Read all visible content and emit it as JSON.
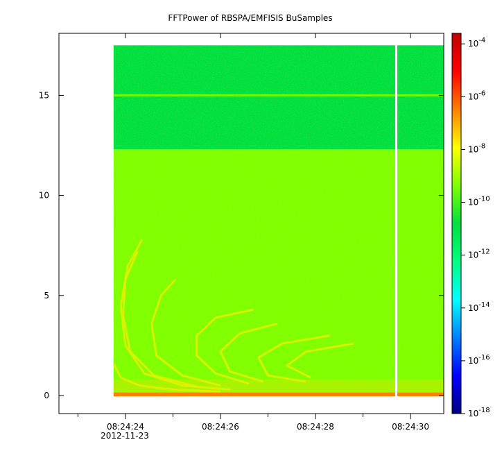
{
  "chart_data": {
    "type": "heatmap",
    "title": "FFTPower of RBSPA/EMFISIS  BuSamples",
    "xlabel": "",
    "ylabel": "",
    "x_ticks": [
      {
        "t": 24,
        "label": "08:24:24"
      },
      {
        "t": 26,
        "label": "08:24:26"
      },
      {
        "t": 28,
        "label": "08:24:28"
      },
      {
        "t": 30,
        "label": "08:24:30"
      }
    ],
    "x_minor_ticks": [
      23,
      25,
      27,
      29
    ],
    "date_label": "2012-11-23",
    "xlim": [
      22.6,
      30.7
    ],
    "ylim": [
      -0.9,
      18.1
    ],
    "y_ticks": [
      0,
      5,
      10,
      15
    ],
    "data_start_time": 23.75,
    "data_end_time": 30.7,
    "data_max_frequency": 17.5,
    "data_gap_time": 29.7,
    "colorbar": {
      "scale": "log",
      "min_exponent": -18,
      "max_exponent": -3.6,
      "tick_exponents": [
        -18,
        -16,
        -14,
        -12,
        -10,
        -8,
        -6,
        -4
      ],
      "colors": [
        "#00007f",
        "#0000ff",
        "#007fff",
        "#00ffff",
        "#00ff80",
        "#00e040",
        "#80ff00",
        "#ffff00",
        "#ff8000",
        "#ff0000",
        "#c00000"
      ]
    },
    "features": [
      {
        "name": "background below 12.3",
        "level_exponent": -10
      },
      {
        "name": "background above 12.3",
        "level_exponent": -11.5
      },
      {
        "name": "line at 15",
        "level_exponent": -9
      },
      {
        "name": "low-frequency band near 0",
        "level_exponent": -7
      },
      {
        "name": "chorus arcs",
        "level_exponent": -8
      }
    ]
  }
}
